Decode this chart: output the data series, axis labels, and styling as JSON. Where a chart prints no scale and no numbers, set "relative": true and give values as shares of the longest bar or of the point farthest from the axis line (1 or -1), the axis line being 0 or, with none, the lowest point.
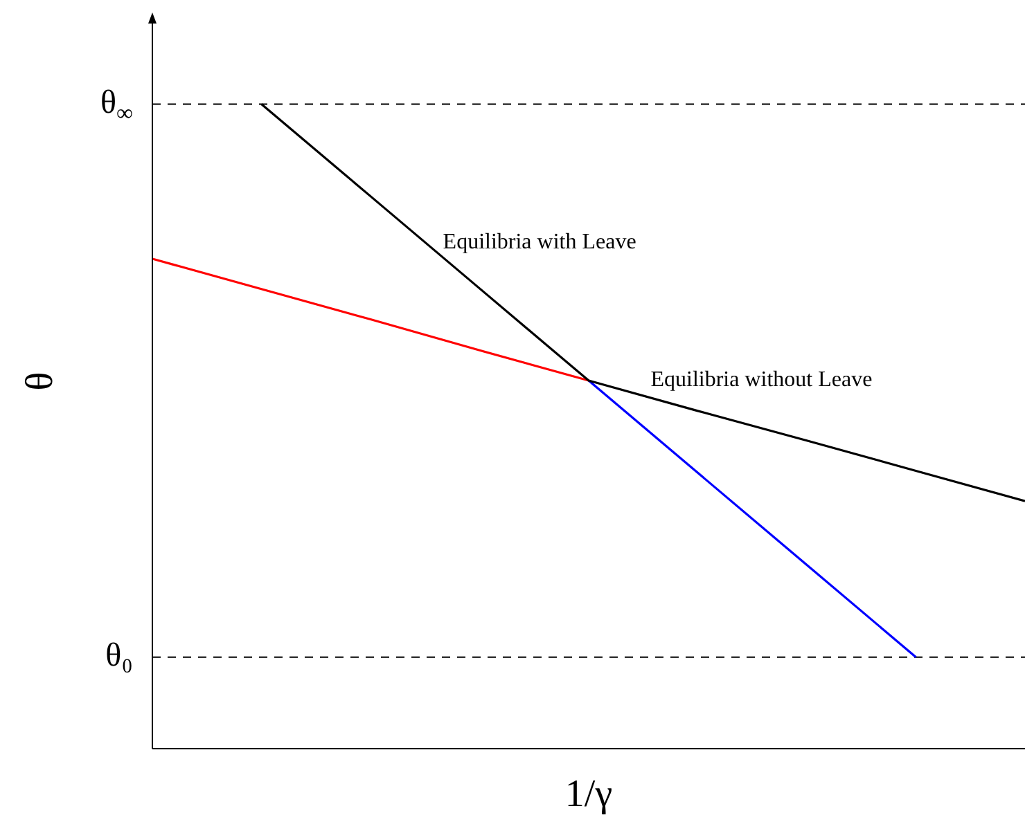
{
  "chart_data": {
    "type": "line",
    "relative": true,
    "xlabel": "1/γ",
    "ylabel": "θ",
    "categories": [
      null,
      null,
      null,
      null,
      null,
      null,
      null,
      null,
      null
    ],
    "series": [
      {
        "color": "#000000",
        "values": [
          null,
          1,
          0.857,
          0.714,
          0.571,
          0.524,
          0.478,
          0.431,
          0.384
        ]
      },
      {
        "color": "#ff0000",
        "values": [
          0.76,
          0.713,
          0.666,
          0.618,
          0.571,
          null,
          null,
          null,
          null
        ]
      },
      {
        "color": "#0000ff",
        "values": [
          null,
          null,
          null,
          null,
          0.571,
          0.428,
          0.285,
          0.142,
          null
        ]
      }
    ],
    "ref_lines": [
      {
        "axis": "y",
        "value": 1,
        "label": "θ$_{∞}$",
        "color": "#000000",
        "line_style": "dashed"
      },
      {
        "axis": "y",
        "value": 0.142,
        "label": "θ₀",
        "color": "#000000",
        "line_style": "dashed"
      }
    ],
    "annotations": [
      "Equilibria with Leave",
      "Equilibria without Leave"
    ]
  }
}
